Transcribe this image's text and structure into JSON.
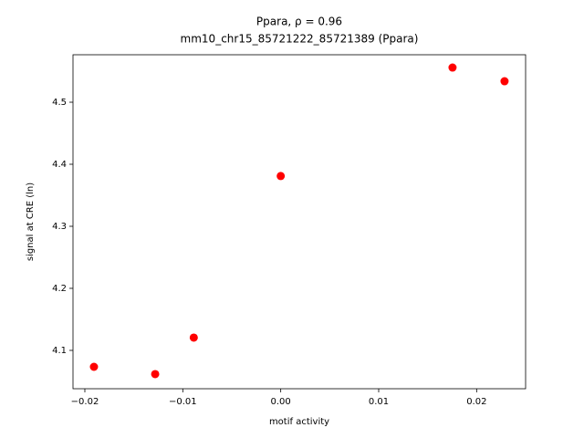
{
  "chart_data": {
    "type": "scatter",
    "title": "Ppara, ρ = 0.96",
    "subtitle": "mm10_chr15_85721222_85721389 (Ppara)",
    "x_label": "motif activity",
    "y_label": "signal at CRE (ln)",
    "color": "#ff0000",
    "x": [
      -0.01907,
      -0.01282,
      -0.00888,
      0.0,
      0.01754,
      0.02285
    ],
    "values": [
      4.0735,
      4.0618,
      4.1206,
      4.381,
      4.5559,
      4.5338
    ],
    "xlim": [
      -0.02121,
      0.025
    ],
    "ylim": [
      4.0382,
      4.5765
    ],
    "xticks": [
      {
        "value": -0.02,
        "label": "−0.02"
      },
      {
        "value": -0.01,
        "label": "−0.01"
      },
      {
        "value": 0,
        "label": "0.00"
      },
      0.01,
      0.02
    ],
    "yticks": [
      4.1,
      4.2,
      4.3,
      4.4,
      4.5
    ]
  }
}
